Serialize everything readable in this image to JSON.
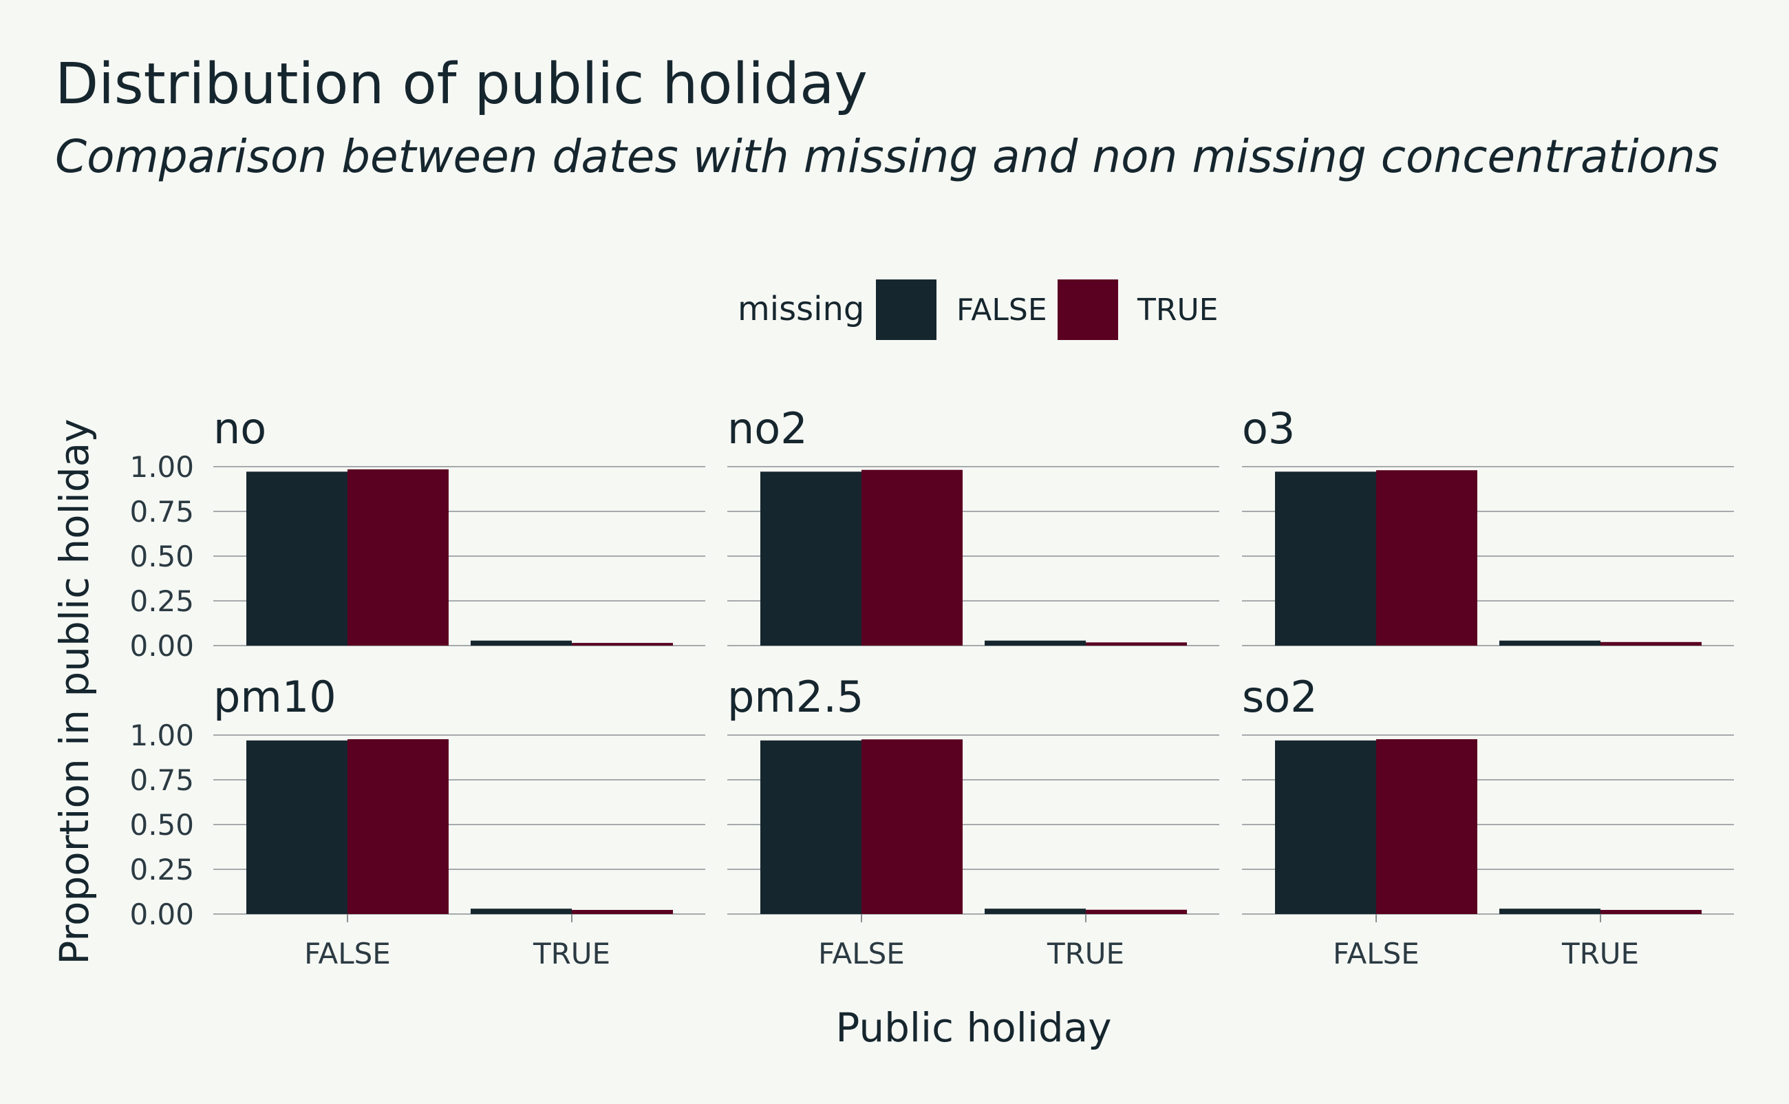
{
  "chart_data": {
    "type": "bar",
    "title": "Distribution of public holiday",
    "subtitle": "Comparison between dates with missing and non missing concentrations",
    "xlabel": "Public holiday",
    "ylabel": "Proportion in public holiday",
    "categories": [
      "FALSE",
      "TRUE"
    ],
    "ylim": [
      0,
      1
    ],
    "yticks": [
      "0.00",
      "0.25",
      "0.50",
      "0.75",
      "1.00"
    ],
    "ytick_values": [
      0,
      0.25,
      0.5,
      0.75,
      1.0
    ],
    "grid": true,
    "legend": {
      "title": "missing",
      "placement": "top",
      "entries": [
        {
          "label": "FALSE",
          "color": "#16262e"
        },
        {
          "label": "TRUE",
          "color": "#5a0020"
        }
      ]
    },
    "panels": [
      {
        "title": "no",
        "series": [
          {
            "name": "FALSE",
            "values": [
              0.972,
              0.028
            ]
          },
          {
            "name": "TRUE",
            "values": [
              0.985,
              0.015
            ]
          }
        ]
      },
      {
        "title": "no2",
        "series": [
          {
            "name": "FALSE",
            "values": [
              0.972,
              0.028
            ]
          },
          {
            "name": "TRUE",
            "values": [
              0.982,
              0.018
            ]
          }
        ]
      },
      {
        "title": "o3",
        "series": [
          {
            "name": "FALSE",
            "values": [
              0.972,
              0.028
            ]
          },
          {
            "name": "TRUE",
            "values": [
              0.98,
              0.02
            ]
          }
        ]
      },
      {
        "title": "pm10",
        "series": [
          {
            "name": "FALSE",
            "values": [
              0.97,
              0.03
            ]
          },
          {
            "name": "TRUE",
            "values": [
              0.977,
              0.023
            ]
          }
        ]
      },
      {
        "title": "pm2.5",
        "series": [
          {
            "name": "FALSE",
            "values": [
              0.97,
              0.03
            ]
          },
          {
            "name": "TRUE",
            "values": [
              0.976,
              0.024
            ]
          }
        ]
      },
      {
        "title": "so2",
        "series": [
          {
            "name": "FALSE",
            "values": [
              0.97,
              0.03
            ]
          },
          {
            "name": "TRUE",
            "values": [
              0.977,
              0.023
            ]
          }
        ]
      }
    ]
  }
}
